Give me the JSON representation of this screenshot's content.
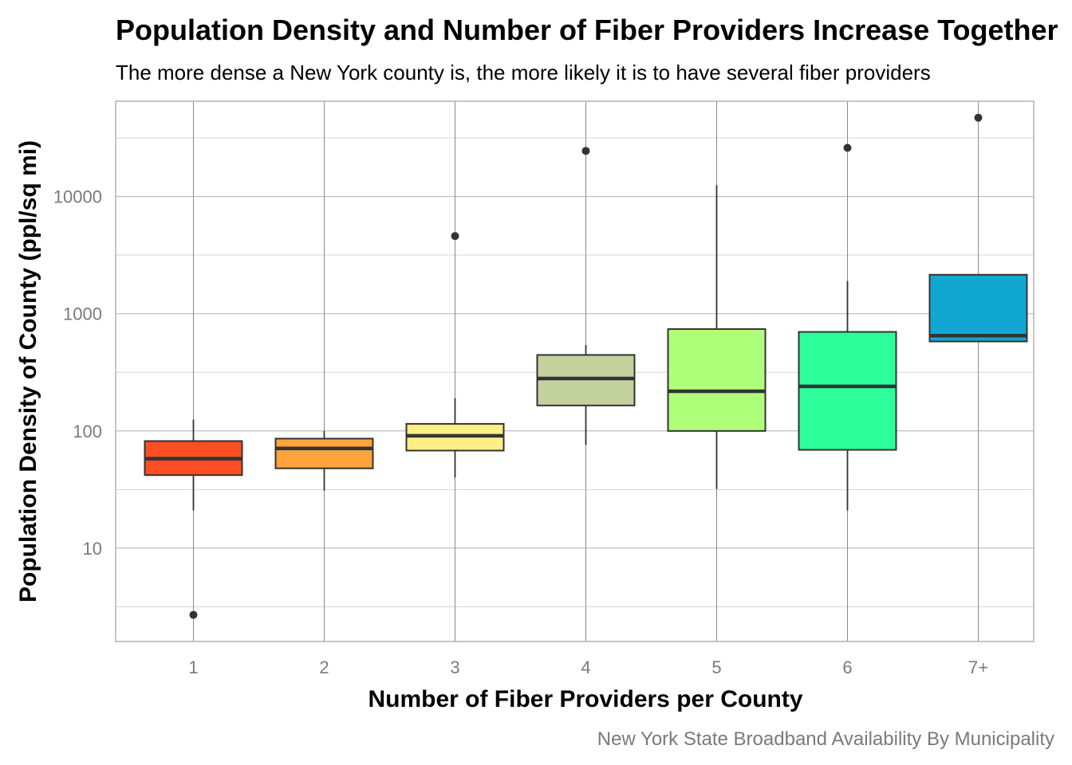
{
  "chart_data": {
    "type": "box",
    "title": "Population Density and Number of Fiber Providers Increase Together",
    "subtitle": "The more dense a New York county is, the more likely it is to have several fiber providers",
    "xlabel": "Number of Fiber Providers per County",
    "ylabel": "Population Density of County (ppl/sq mi)",
    "caption": "New York State Broadband Availability By Municipality",
    "y_scale": "log10",
    "ylim": [
      1.6,
      65000
    ],
    "y_ticks": [
      10,
      100,
      1000,
      10000
    ],
    "y_tick_labels": [
      "10",
      "100",
      "1000",
      "10000"
    ],
    "grid": true,
    "categories": [
      "1",
      "2",
      "3",
      "4",
      "5",
      "6",
      "7+"
    ],
    "boxes": [
      {
        "category": "1",
        "whisker_low": 21,
        "q1": 42,
        "median": 58,
        "q3": 82,
        "whisker_high": 125,
        "outliers": [
          2.7
        ],
        "color": "#FF4E21"
      },
      {
        "category": "2",
        "whisker_low": 31,
        "q1": 48,
        "median": 71,
        "q3": 86,
        "whisker_high": 100,
        "outliers": [],
        "color": "#FFA43B"
      },
      {
        "category": "3",
        "whisker_low": 40,
        "q1": 68,
        "median": 91,
        "q3": 115,
        "whisker_high": 190,
        "outliers": [
          4600
        ],
        "color": "#FFEE86"
      },
      {
        "category": "4",
        "whisker_low": 76,
        "q1": 165,
        "median": 280,
        "q3": 445,
        "whisker_high": 540,
        "outliers": [
          24500
        ],
        "color": "#C3D19D"
      },
      {
        "category": "5",
        "whisker_low": 32,
        "q1": 100,
        "median": 218,
        "q3": 740,
        "whisker_high": 12500,
        "outliers": [],
        "color": "#B0FF7A"
      },
      {
        "category": "6",
        "whisker_low": 21,
        "q1": 69,
        "median": 240,
        "q3": 700,
        "whisker_high": 1900,
        "outliers": [
          26000
        ],
        "color": "#2CFF9A"
      },
      {
        "category": "7+",
        "whisker_low": 580,
        "q1": 580,
        "median": 650,
        "q3": 2150,
        "whisker_high": 2150,
        "outliers": [
          47000
        ],
        "color": "#10A8D0"
      }
    ]
  }
}
